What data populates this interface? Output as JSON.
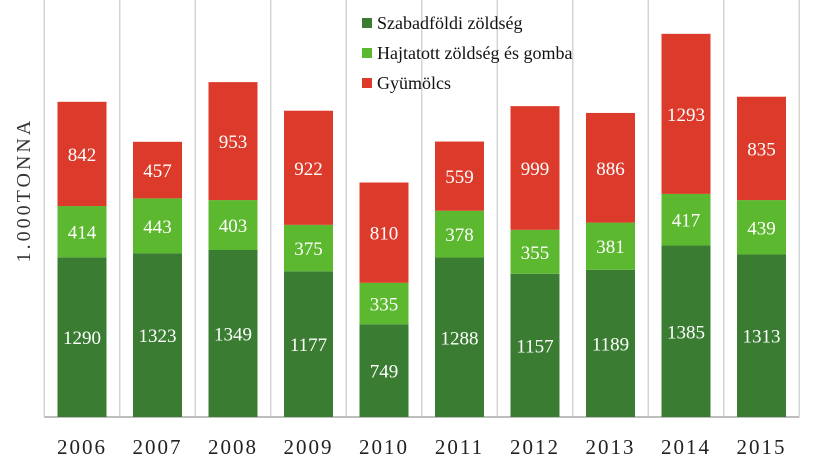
{
  "chart_data": {
    "type": "bar",
    "stacked": true,
    "title": "",
    "xlabel": "",
    "ylabel": "1.000TONNA",
    "categories": [
      "2006",
      "2007",
      "2008",
      "2009",
      "2010",
      "2011",
      "2012",
      "2013",
      "2014",
      "2015"
    ],
    "series": [
      {
        "name": "Szabadföldi zöldség",
        "color": "#3a7d32",
        "values": [
          1290,
          1323,
          1349,
          1177,
          749,
          1288,
          1157,
          1189,
          1385,
          1313
        ]
      },
      {
        "name": "Hajtatott zöldség és gomba",
        "color": "#5cb82e",
        "values": [
          414,
          443,
          403,
          375,
          335,
          378,
          355,
          381,
          417,
          439
        ]
      },
      {
        "name": "Gyümölcs",
        "color": "#dc3a2b",
        "values": [
          842,
          457,
          953,
          922,
          810,
          559,
          999,
          886,
          1293,
          835
        ]
      }
    ],
    "ylim": [
      0,
      3200
    ],
    "grid": false,
    "legend": "top-center",
    "data_labels": true
  }
}
